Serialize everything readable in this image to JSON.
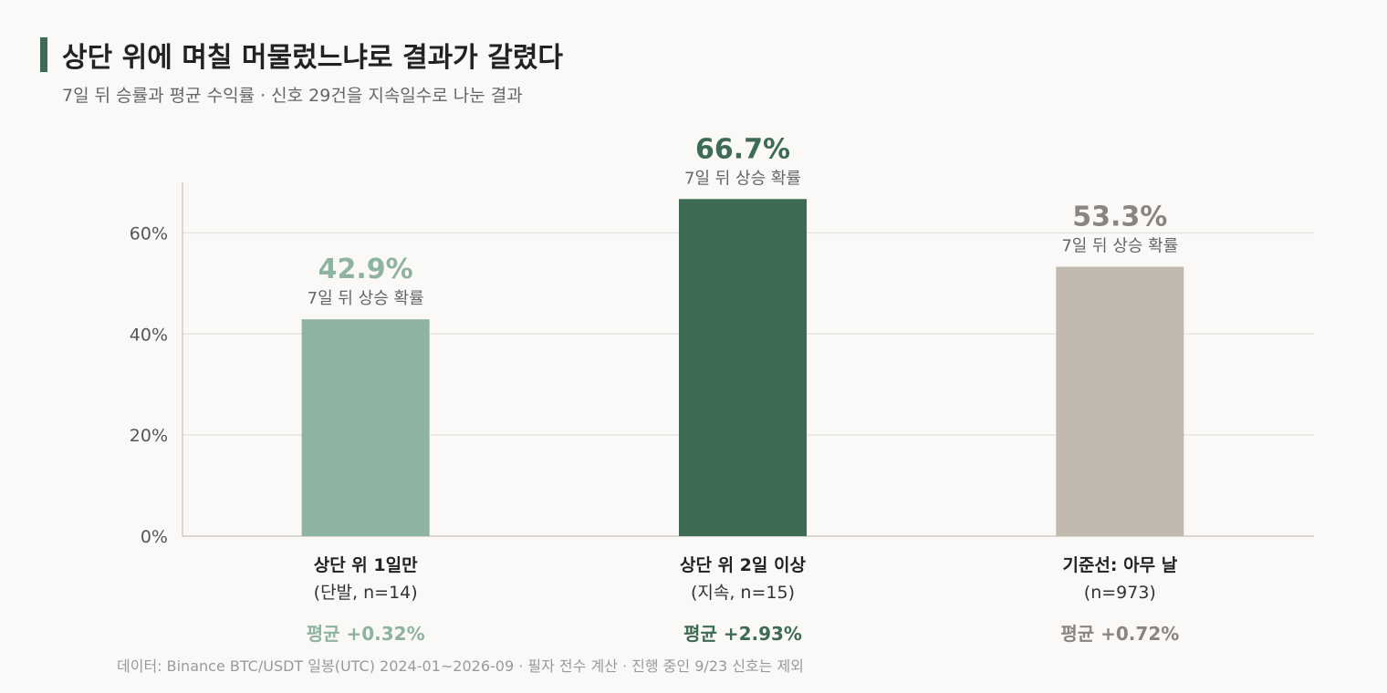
{
  "title": "상단 위에 며칠 머물렀느냐로 결과가 갈렸다",
  "subtitle": "7일 뒤 승률과 평균 수익률 · 신호 29건을 지속일수로 나눈 결과",
  "footnote": "데이터: Binance BTC/USDT 일봉(UTC) 2024-01~2026-09 · 필자 전수 계산 · 진행 중인 9/23 신호는 제외",
  "colors": {
    "accent": "#3e6b53",
    "grid": "#e6e4e0",
    "axis": "#cfccc7",
    "tick_text": "#555555"
  },
  "chart_data": {
    "type": "bar",
    "title": "상단 위에 며칠 머물렀느냐로 결과가 갈렸다",
    "subtitle": "7일 뒤 승률과 평균 수익률 · 신호 29건을 지속일수로 나눈 결과",
    "ylim": [
      0,
      70
    ],
    "yticks": [
      {
        "value": 0,
        "label": "0%"
      },
      {
        "value": 20,
        "label": "20%"
      },
      {
        "value": 40,
        "label": "40%"
      },
      {
        "value": 60,
        "label": "60%"
      }
    ],
    "grid": true,
    "categories": [
      {
        "label": "상단 위 1일만",
        "sublabel": "(단발, n=14)",
        "value": 42.9,
        "value_label": "42.9%",
        "caption": "7일 뒤 상승 확률",
        "avg_label": "평균 +0.32%",
        "color": "#8fb3a1",
        "value_color": "#8fb3a1",
        "avg_color": "#8fb3a1"
      },
      {
        "label": "상단 위 2일 이상",
        "sublabel": "(지속, n=15)",
        "value": 66.7,
        "value_label": "66.7%",
        "caption": "7일 뒤 상승 확률",
        "avg_label": "평균 +2.93%",
        "color": "#3e6b53",
        "value_color": "#3e6b53",
        "avg_color": "#3e6b53"
      },
      {
        "label": "기준선: 아무 날",
        "sublabel": "(n=973)",
        "value": 53.3,
        "value_label": "53.3%",
        "caption": "7일 뒤 상승 확률",
        "avg_label": "평균 +0.72%",
        "color": "#c1b9ae",
        "value_color": "#8a857f",
        "avg_color": "#8a857f"
      }
    ]
  }
}
